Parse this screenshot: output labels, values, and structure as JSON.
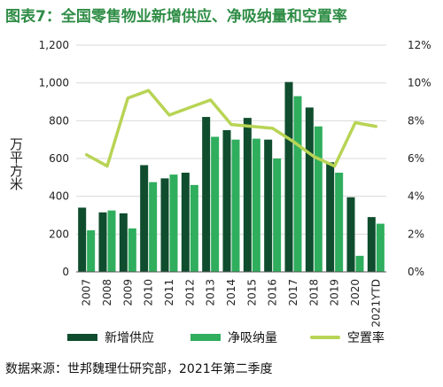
{
  "title": "图表7：全国零售物业新增供应、净吸纳量和空置率",
  "source": "数据来源：世邦魏理仕研究部，2021年第二季度",
  "colors": {
    "title": "#2f8d46",
    "new_supply": "#0f4d2e",
    "net_absorption": "#2fae5d",
    "vacancy": "#b8d455"
  },
  "chart_data": {
    "type": "bar",
    "categories": [
      "2007",
      "2008",
      "2009",
      "2010",
      "2011",
      "2012",
      "2013",
      "2014",
      "2015",
      "2016",
      "2017",
      "2018",
      "2019",
      "2020",
      "2021YTD"
    ],
    "ylabel": "万平方米",
    "ylim": [
      0,
      1200
    ],
    "yticks": [
      "0",
      "200",
      "400",
      "600",
      "800",
      "1,000",
      "1,200"
    ],
    "y2lim": [
      0,
      12
    ],
    "y2ticks": [
      "0%",
      "2%",
      "4%",
      "6%",
      "8%",
      "10%",
      "12%"
    ],
    "legend_position": "bottom",
    "series": [
      {
        "name": "新增供应",
        "type": "bar",
        "values": [
          340,
          315,
          310,
          565,
          495,
          525,
          820,
          750,
          815,
          700,
          1005,
          870,
          580,
          395,
          290
        ]
      },
      {
        "name": "净吸纳量",
        "type": "bar",
        "values": [
          220,
          325,
          230,
          475,
          515,
          460,
          715,
          700,
          705,
          600,
          930,
          770,
          525,
          85,
          255
        ]
      },
      {
        "name": "空置率",
        "type": "line",
        "axis": "right",
        "values": [
          6.2,
          5.6,
          9.2,
          9.6,
          8.3,
          8.7,
          9.1,
          7.8,
          7.7,
          7.6,
          6.9,
          6.1,
          5.6,
          7.9,
          7.7
        ]
      }
    ]
  }
}
